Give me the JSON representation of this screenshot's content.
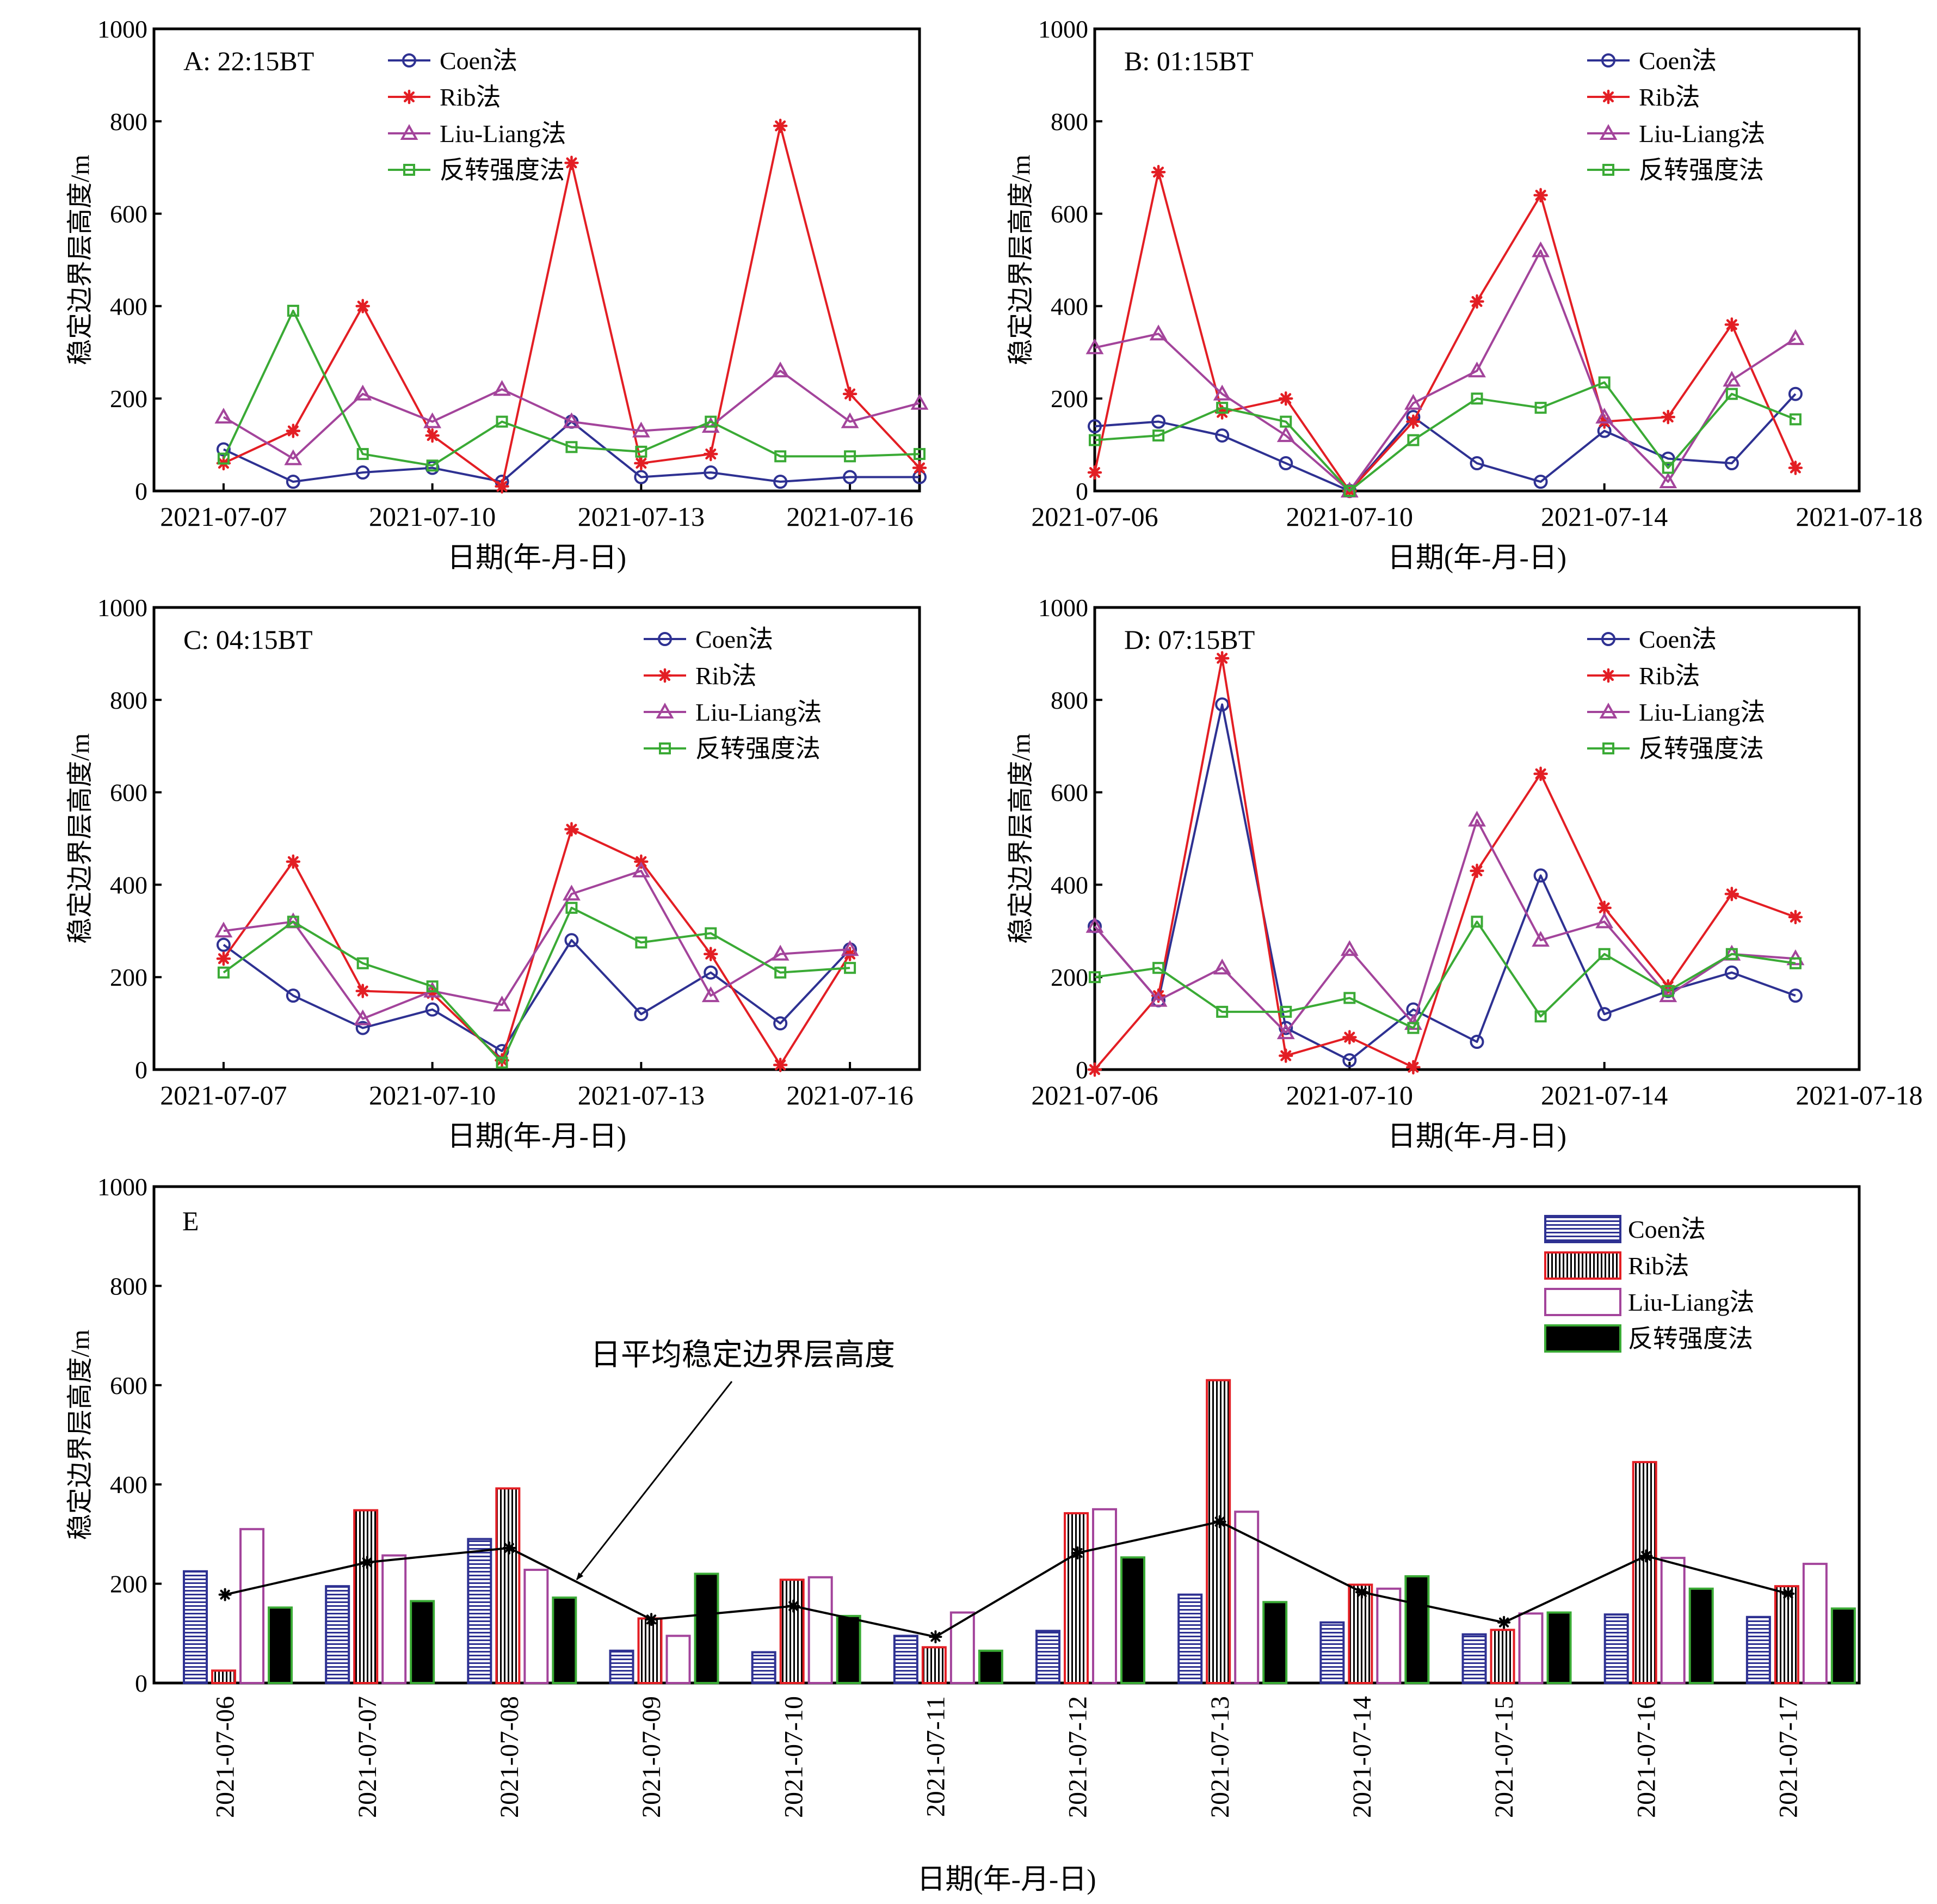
{
  "colors": {
    "coen": "#2e3192",
    "rib": "#e31e24",
    "liu": "#a3449b",
    "inv": "#3aaa35",
    "mean": "#000000"
  },
  "chart_data": [
    {
      "id": "A",
      "type": "line",
      "panel_label": "A: 22:15BT",
      "ylabel": "稳定边界层高度/m",
      "xlabel": "日期(年-月-日)",
      "ylim": [
        0,
        1000
      ],
      "yticks": [
        "0",
        "200",
        "400",
        "600",
        "800",
        "1000"
      ],
      "x_dates": [
        "2021-07-07",
        "2021-07-08",
        "2021-07-09",
        "2021-07-10",
        "2021-07-11",
        "2021-07-12",
        "2021-07-13",
        "2021-07-14",
        "2021-07-15",
        "2021-07-16",
        "2021-07-17"
      ],
      "xlim": [
        "2021-07-06",
        "2021-07-17"
      ],
      "xticks": [
        "2021-07-07",
        "2021-07-10",
        "2021-07-13",
        "2021-07-16"
      ],
      "legend": [
        "Coen法",
        "Rib法",
        "Liu-Liang法",
        "反转强度法"
      ],
      "series": [
        {
          "name": "Coen法",
          "key": "coen",
          "values": [
            90,
            20,
            40,
            50,
            20,
            150,
            30,
            40,
            20,
            30,
            30
          ]
        },
        {
          "name": "Rib法",
          "key": "rib",
          "values": [
            60,
            130,
            400,
            120,
            10,
            710,
            60,
            80,
            790,
            210,
            50
          ]
        },
        {
          "name": "Liu-Liang法",
          "key": "liu",
          "values": [
            160,
            70,
            210,
            150,
            220,
            150,
            130,
            140,
            260,
            150,
            190
          ]
        },
        {
          "name": "反转强度法",
          "key": "inv",
          "values": [
            70,
            390,
            80,
            55,
            150,
            95,
            85,
            150,
            75,
            75,
            80
          ]
        }
      ]
    },
    {
      "id": "B",
      "type": "line",
      "panel_label": "B: 01:15BT",
      "ylabel": "稳定边界层高度/m",
      "xlabel": "日期(年-月-日)",
      "ylim": [
        0,
        1000
      ],
      "yticks": [
        "0",
        "200",
        "400",
        "600",
        "800",
        "1000"
      ],
      "x_dates": [
        "2021-07-06",
        "2021-07-07",
        "2021-07-08",
        "2021-07-09",
        "2021-07-10",
        "2021-07-11",
        "2021-07-12",
        "2021-07-13",
        "2021-07-14",
        "2021-07-15",
        "2021-07-16",
        "2021-07-17"
      ],
      "xlim": [
        "2021-07-06",
        "2021-07-18"
      ],
      "xticks": [
        "2021-07-06",
        "2021-07-10",
        "2021-07-14",
        "2021-07-18"
      ],
      "legend": [
        "Coen法",
        "Rib法",
        "Liu-Liang法",
        "反转强度法"
      ],
      "series": [
        {
          "name": "Coen法",
          "key": "coen",
          "values": [
            140,
            150,
            120,
            60,
            0,
            160,
            60,
            20,
            130,
            70,
            60,
            210
          ]
        },
        {
          "name": "Rib法",
          "key": "rib",
          "values": [
            40,
            690,
            170,
            200,
            0,
            150,
            410,
            640,
            150,
            160,
            360,
            50
          ]
        },
        {
          "name": "Liu-Liang法",
          "key": "liu",
          "values": [
            310,
            340,
            210,
            120,
            0,
            190,
            260,
            520,
            160,
            20,
            240,
            330
          ]
        },
        {
          "name": "反转强度法",
          "key": "inv",
          "values": [
            110,
            120,
            180,
            150,
            0,
            110,
            200,
            180,
            235,
            50,
            210,
            155
          ]
        }
      ]
    },
    {
      "id": "C",
      "type": "line",
      "panel_label": "C: 04:15BT",
      "ylabel": "稳定边界层高度/m",
      "xlabel": "日期(年-月-日)",
      "ylim": [
        0,
        1000
      ],
      "yticks": [
        "0",
        "200",
        "400",
        "600",
        "800",
        "1000"
      ],
      "x_dates": [
        "2021-07-07",
        "2021-07-08",
        "2021-07-09",
        "2021-07-10",
        "2021-07-11",
        "2021-07-12",
        "2021-07-13",
        "2021-07-14",
        "2021-07-15",
        "2021-07-16"
      ],
      "xlim": [
        "2021-07-06",
        "2021-07-17"
      ],
      "xticks": [
        "2021-07-07",
        "2021-07-10",
        "2021-07-13",
        "2021-07-16"
      ],
      "legend": [
        "Coen法",
        "Rib法",
        "Liu-Liang法",
        "反转强度法"
      ],
      "series": [
        {
          "name": "Coen法",
          "key": "coen",
          "values": [
            270,
            160,
            90,
            130,
            40,
            280,
            120,
            210,
            100,
            260
          ]
        },
        {
          "name": "Rib法",
          "key": "rib",
          "values": [
            240,
            450,
            170,
            165,
            20,
            520,
            450,
            250,
            10,
            250
          ]
        },
        {
          "name": "Liu-Liang法",
          "key": "liu",
          "values": [
            300,
            320,
            110,
            170,
            140,
            380,
            430,
            160,
            250,
            260
          ]
        },
        {
          "name": "反转强度法",
          "key": "inv",
          "values": [
            210,
            320,
            230,
            180,
            15,
            350,
            275,
            295,
            210,
            220
          ]
        }
      ]
    },
    {
      "id": "D",
      "type": "line",
      "panel_label": "D: 07:15BT",
      "ylabel": "稳定边界层高度/m",
      "xlabel": "日期(年-月-日)",
      "ylim": [
        0,
        1000
      ],
      "yticks": [
        "0",
        "200",
        "400",
        "600",
        "800",
        "1000"
      ],
      "x_dates": [
        "2021-07-06",
        "2021-07-07",
        "2021-07-08",
        "2021-07-09",
        "2021-07-10",
        "2021-07-11",
        "2021-07-12",
        "2021-07-13",
        "2021-07-14",
        "2021-07-15",
        "2021-07-16",
        "2021-07-17"
      ],
      "xlim": [
        "2021-07-06",
        "2021-07-18"
      ],
      "xticks": [
        "2021-07-06",
        "2021-07-10",
        "2021-07-14",
        "2021-07-18"
      ],
      "legend": [
        "Coen法",
        "Rib法",
        "Liu-Liang法",
        "反转强度法"
      ],
      "series": [
        {
          "name": "Coen法",
          "key": "coen",
          "values": [
            310,
            150,
            790,
            90,
            20,
            130,
            60,
            420,
            120,
            170,
            210,
            160
          ]
        },
        {
          "name": "Rib法",
          "key": "rib",
          "values": [
            0,
            160,
            890,
            30,
            70,
            5,
            430,
            640,
            350,
            180,
            380,
            330
          ]
        },
        {
          "name": "Liu-Liang法",
          "key": "liu",
          "values": [
            310,
            150,
            220,
            80,
            260,
            100,
            540,
            280,
            320,
            160,
            250,
            240
          ]
        },
        {
          "name": "反转强度法",
          "key": "inv",
          "values": [
            200,
            220,
            125,
            125,
            155,
            90,
            320,
            115,
            250,
            170,
            250,
            230
          ]
        }
      ]
    },
    {
      "id": "E",
      "type": "bar",
      "panel_label": "E",
      "ylabel": "稳定边界层高度/m",
      "xlabel": "日期(年-月-日)",
      "annotation": "日平均稳定边界层高度",
      "ylim": [
        0,
        1000
      ],
      "yticks": [
        "0",
        "200",
        "400",
        "600",
        "800",
        "1000"
      ],
      "categories": [
        "2021-07-06",
        "2021-07-07",
        "2021-07-08",
        "2021-07-09",
        "2021-07-10",
        "2021-07-11",
        "2021-07-12",
        "2021-07-13",
        "2021-07-14",
        "2021-07-15",
        "2021-07-16",
        "2021-07-17"
      ],
      "legend": [
        "Coen法",
        "Rib法",
        "Liu-Liang法",
        "反转强度法"
      ],
      "series": [
        {
          "name": "Coen法",
          "key": "coen",
          "values": [
            225,
            195,
            290,
            65,
            62,
            95,
            105,
            178,
            122,
            98,
            138,
            133
          ]
        },
        {
          "name": "Rib法",
          "key": "rib",
          "values": [
            25,
            348,
            392,
            130,
            208,
            72,
            342,
            610,
            198,
            107,
            445,
            195
          ]
        },
        {
          "name": "Liu-Liang法",
          "key": "liu",
          "values": [
            310,
            257,
            228,
            95,
            213,
            142,
            350,
            345,
            190,
            140,
            252,
            240
          ]
        },
        {
          "name": "反转强度法",
          "key": "inv",
          "values": [
            152,
            165,
            172,
            220,
            135,
            65,
            253,
            163,
            215,
            142,
            190,
            150
          ]
        }
      ],
      "mean_line": [
        178,
        243,
        272,
        128,
        155,
        93,
        262,
        325,
        183,
        122,
        256,
        180
      ]
    }
  ]
}
